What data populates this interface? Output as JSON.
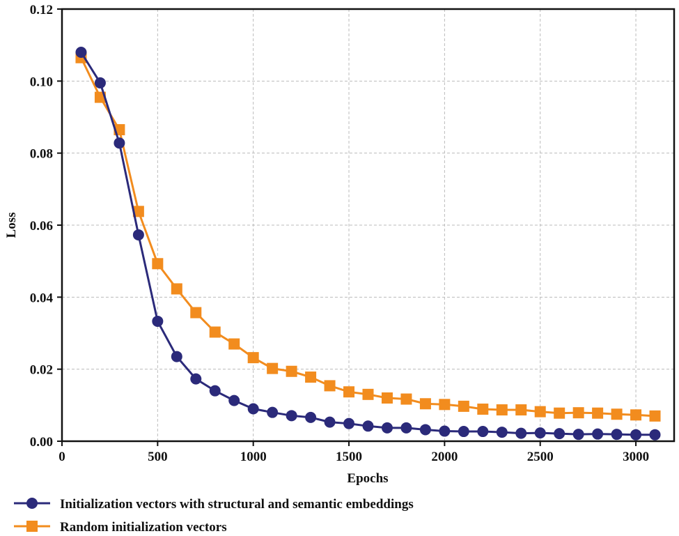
{
  "chart_data": {
    "type": "line",
    "title": "",
    "xlabel": "Epochs",
    "ylabel": "Loss",
    "xlim": [
      0,
      3200
    ],
    "ylim": [
      0,
      0.12
    ],
    "xticks": [
      "0",
      "500",
      "1000",
      "1500",
      "2000",
      "2500",
      "3000"
    ],
    "yticks": [
      "0.00",
      "0.02",
      "0.04",
      "0.06",
      "0.08",
      "0.10",
      "0.12"
    ],
    "grid": true,
    "legend_position": "bottom",
    "x": [
      100,
      200,
      300,
      400,
      500,
      600,
      700,
      800,
      900,
      1000,
      1100,
      1200,
      1300,
      1400,
      1500,
      1600,
      1700,
      1800,
      1900,
      2000,
      2100,
      2200,
      2300,
      2400,
      2500,
      2600,
      2700,
      2800,
      2900,
      3000,
      3100
    ],
    "series": [
      {
        "name": "Initialization vectors with structural and semantic embeddings",
        "color": "#2b2a7a",
        "marker": "circle",
        "values": [
          0.108,
          0.0995,
          0.0828,
          0.0573,
          0.0333,
          0.0235,
          0.0173,
          0.014,
          0.0113,
          0.009,
          0.008,
          0.0071,
          0.0066,
          0.0053,
          0.0049,
          0.0042,
          0.0037,
          0.0037,
          0.0032,
          0.0028,
          0.0027,
          0.0027,
          0.0025,
          0.0022,
          0.0023,
          0.0021,
          0.0019,
          0.002,
          0.0019,
          0.0018,
          0.0018
        ]
      },
      {
        "name": "Random initialization vectors",
        "color": "#f28c1e",
        "marker": "square",
        "values": [
          0.1065,
          0.0955,
          0.0865,
          0.0638,
          0.0493,
          0.0423,
          0.0357,
          0.0303,
          0.027,
          0.0232,
          0.0202,
          0.0194,
          0.0178,
          0.0154,
          0.0137,
          0.013,
          0.012,
          0.0117,
          0.0104,
          0.0102,
          0.0097,
          0.0089,
          0.0087,
          0.0087,
          0.0082,
          0.0078,
          0.0079,
          0.0078,
          0.0075,
          0.0073,
          0.007
        ]
      }
    ]
  }
}
